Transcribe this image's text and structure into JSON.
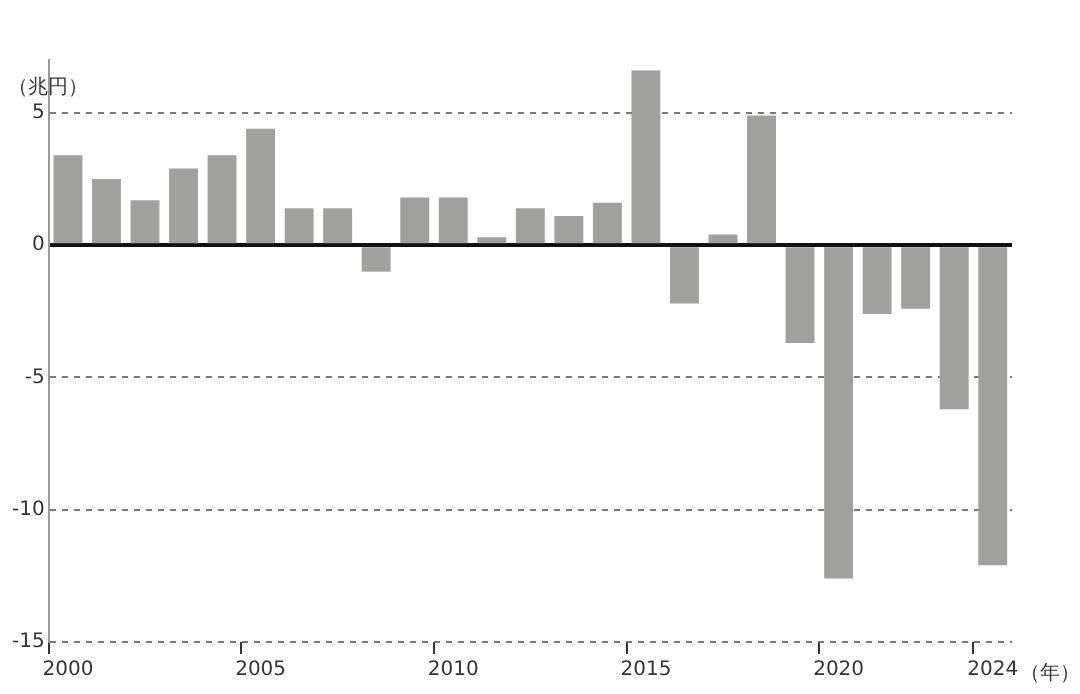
{
  "chart_data": {
    "type": "bar",
    "ylabel": "（兆円）",
    "xlabel": "（年）",
    "categories": [
      "2000",
      null,
      null,
      null,
      null,
      "2005",
      null,
      null,
      null,
      null,
      "2010",
      null,
      null,
      null,
      null,
      "2015",
      null,
      null,
      null,
      null,
      "2020",
      null,
      null,
      null,
      "2024"
    ],
    "values": [
      3.4,
      2.5,
      1.7,
      2.9,
      3.4,
      4.4,
      1.4,
      1.4,
      -1.0,
      1.8,
      1.8,
      0.3,
      1.4,
      1.1,
      1.6,
      6.6,
      -2.2,
      0.4,
      4.9,
      -3.7,
      -12.6,
      -2.6,
      -2.4,
      -6.2,
      -12.1
    ],
    "color": "#a0a09f",
    "ylim": [
      -15,
      7
    ],
    "yticks": [
      -15,
      -10,
      -5,
      0,
      5
    ],
    "grid": "y",
    "legend": false
  }
}
